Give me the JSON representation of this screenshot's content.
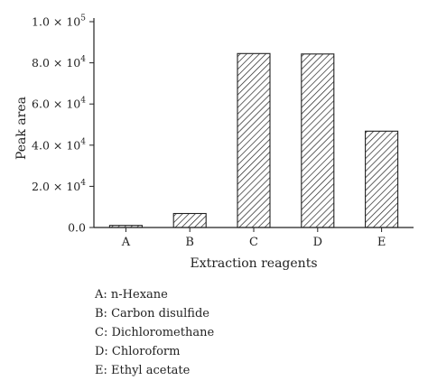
{
  "chart_data": {
    "type": "bar",
    "title": "",
    "xlabel": "Extraction reagents",
    "ylabel": "Peak area",
    "categories": [
      "A",
      "B",
      "C",
      "D",
      "E"
    ],
    "values": [
      1000,
      6800,
      84500,
      84300,
      46800
    ],
    "ylim": [
      0,
      100000
    ],
    "yticks": [
      0,
      20000,
      40000,
      60000,
      80000,
      100000
    ],
    "ytick_labels": [
      {
        "mantissa": "0.0",
        "exp": ""
      },
      {
        "mantissa": "2.0 × 10",
        "exp": "4"
      },
      {
        "mantissa": "4.0 × 10",
        "exp": "4"
      },
      {
        "mantissa": "6.0 × 10",
        "exp": "4"
      },
      {
        "mantissa": "8.0 × 10",
        "exp": "4"
      },
      {
        "mantissa": "1.0 × 10",
        "exp": "5"
      }
    ],
    "bar_fill": "hatched",
    "bar_color": "#222222",
    "grid": false,
    "legend_entries": [
      "A: n-Hexane",
      "B: Carbon disulfide",
      "C: Dichloromethane",
      "D: Chloroform",
      "E: Ethyl acetate"
    ]
  }
}
